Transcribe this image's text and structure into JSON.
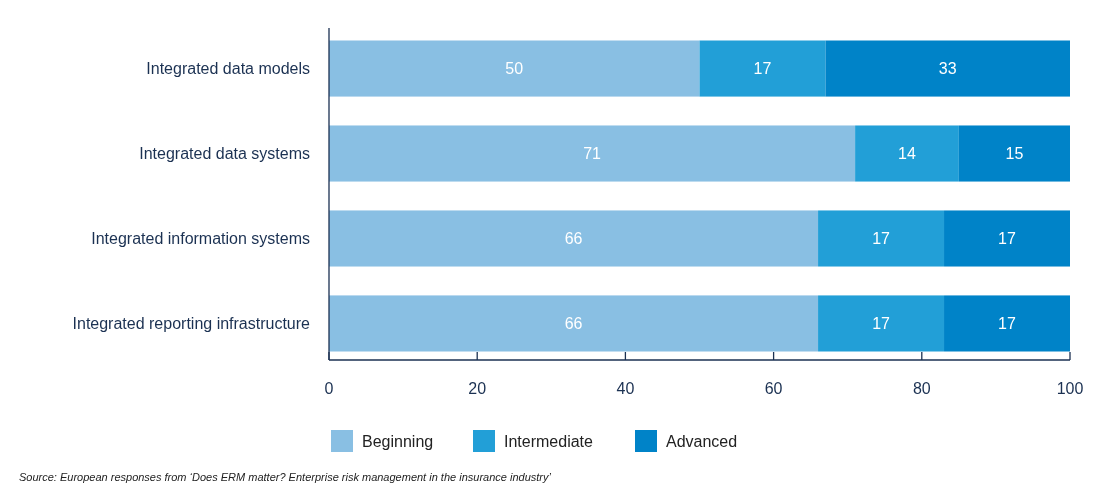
{
  "chart_data": {
    "type": "bar",
    "orientation": "horizontal",
    "stacked": true,
    "categories": [
      "Integrated data models",
      "Integrated data systems",
      "Integrated information systems",
      "Integrated reporting infrastructure"
    ],
    "series": [
      {
        "name": "Beginning",
        "color": "#89bfe3",
        "values": [
          50,
          71,
          66,
          66
        ]
      },
      {
        "name": "Intermediate",
        "color": "#229fd7",
        "values": [
          17,
          14,
          17,
          17
        ]
      },
      {
        "name": "Advanced",
        "color": "#0083c8",
        "values": [
          33,
          15,
          17,
          17
        ]
      }
    ],
    "xlim": [
      0,
      100
    ],
    "xticks": [
      0,
      20,
      40,
      60,
      80,
      100
    ],
    "data_labels": true,
    "legend": "bottom",
    "grid": false,
    "annotations": [
      "Source: European responses from ‘Does ERM matter? Enterprise risk management in the insurance industry’"
    ]
  }
}
